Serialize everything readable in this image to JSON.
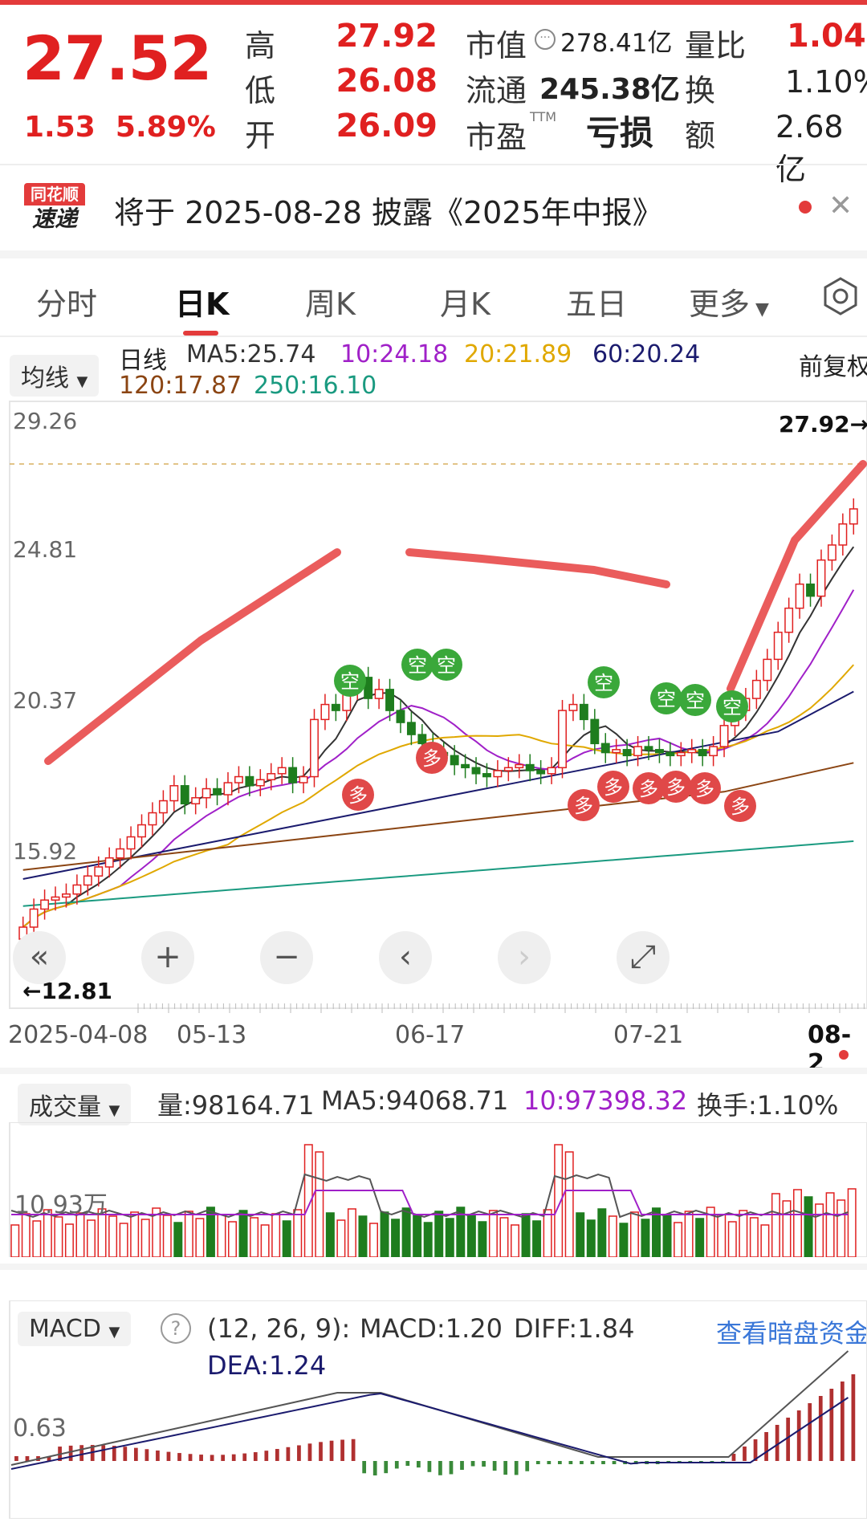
{
  "quote": {
    "price": "27.52",
    "change": "1.53",
    "change_pct": "5.89%",
    "rows": [
      {
        "l1": "高",
        "v1": "27.92",
        "l2": "市值",
        "v2": "278.41亿",
        "l3": "量比",
        "v3": "1.04"
      },
      {
        "l1": "低",
        "v1": "26.08",
        "l2": "流通",
        "v2": "245.38亿",
        "l3": "换",
        "v3": "1.10%"
      },
      {
        "l1": "开",
        "v1": "26.09",
        "l2": "市盈",
        "v2": "亏损",
        "l3": "额",
        "v3": "2.68亿"
      }
    ],
    "pe_sup": "TTM"
  },
  "notice": {
    "logo_top": "同花顺",
    "logo_bottom": "速递",
    "text": "将于 2025-08-28 披露《2025年中报》"
  },
  "tabs": [
    "分时",
    "日K",
    "周K",
    "月K",
    "五日",
    "更多"
  ],
  "active_tab": "日K",
  "ma_legend": {
    "selector": "均线",
    "kind": "日线",
    "items_row1": [
      {
        "text": "MA5:25.74",
        "color": "#333333"
      },
      {
        "text": "10:24.18",
        "color": "#a020c8"
      },
      {
        "text": "20:21.89",
        "color": "#e0a800"
      },
      {
        "text": "60:20.24",
        "color": "#1b1b6e"
      }
    ],
    "items_row2": [
      {
        "text": "120:17.87",
        "color": "#8b4513"
      },
      {
        "text": "250:16.10",
        "color": "#1a9a80"
      }
    ],
    "adjust": "前复权"
  },
  "chart_data": {
    "type": "candlestick",
    "y_ticks": [
      "29.26",
      "24.81",
      "20.37",
      "15.92"
    ],
    "high_label": "27.92→",
    "low_label": "←12.81",
    "low_tick_partial": "47",
    "x_ticks": [
      "2025-04-08",
      "05-13",
      "06-17",
      "07-21",
      "08-2"
    ],
    "signals_short": [
      "空",
      "空",
      "空",
      "空",
      "空",
      "空",
      "空"
    ],
    "signals_long": [
      "多",
      "多",
      "多",
      "多",
      "多",
      "多",
      "多",
      "多"
    ],
    "closes_approx": [
      13.6,
      14.2,
      14.5,
      14.6,
      14.7,
      15.0,
      15.3,
      15.6,
      15.9,
      16.2,
      16.6,
      17.0,
      17.4,
      17.8,
      18.3,
      17.7,
      17.9,
      18.2,
      18.0,
      18.4,
      18.6,
      18.3,
      18.5,
      18.7,
      18.9,
      18.4,
      18.6,
      20.5,
      21.0,
      20.8,
      21.5,
      21.9,
      21.2,
      21.5,
      20.8,
      20.4,
      20.0,
      19.7,
      19.4,
      19.3,
      19.0,
      18.9,
      18.7,
      18.6,
      18.8,
      18.9,
      19.0,
      18.8,
      18.7,
      18.9,
      20.8,
      21.0,
      20.5,
      19.7,
      19.4,
      19.5,
      19.3,
      19.6,
      19.5,
      19.4,
      19.3,
      19.4,
      19.5,
      19.3,
      19.6,
      20.3,
      20.8,
      21.2,
      21.8,
      22.5,
      23.4,
      24.2,
      25.0,
      24.6,
      25.8,
      26.3,
      27.0,
      27.5
    ]
  },
  "controls": [
    "«",
    "+",
    "−",
    "‹",
    "›",
    "⤢"
  ],
  "volume": {
    "selector": "成交量",
    "vol": "量:98164.71",
    "ma5": "MA5:94068.71",
    "ma10": "10:97398.32",
    "turnover": "换手:1.10%",
    "y_tick": "10.93万"
  },
  "macd": {
    "selector": "MACD",
    "help": "?",
    "params": "(12, 26, 9):",
    "macd": "MACD:1.20",
    "diff": "DIFF:1.84",
    "dea": "DEA:1.24",
    "link": "查看暗盘资金",
    "y_tick": "0.63"
  },
  "colors": {
    "up": "#e02020",
    "down": "#1e7d1e",
    "ma10": "#a020c8",
    "ma20": "#e0a800",
    "ma60": "#1b1b6e",
    "ma120": "#8b4513",
    "ma250": "#1a9a80",
    "trend": "#e84a4a",
    "signal_short": "#3aa83a",
    "signal_long": "#e04848"
  }
}
